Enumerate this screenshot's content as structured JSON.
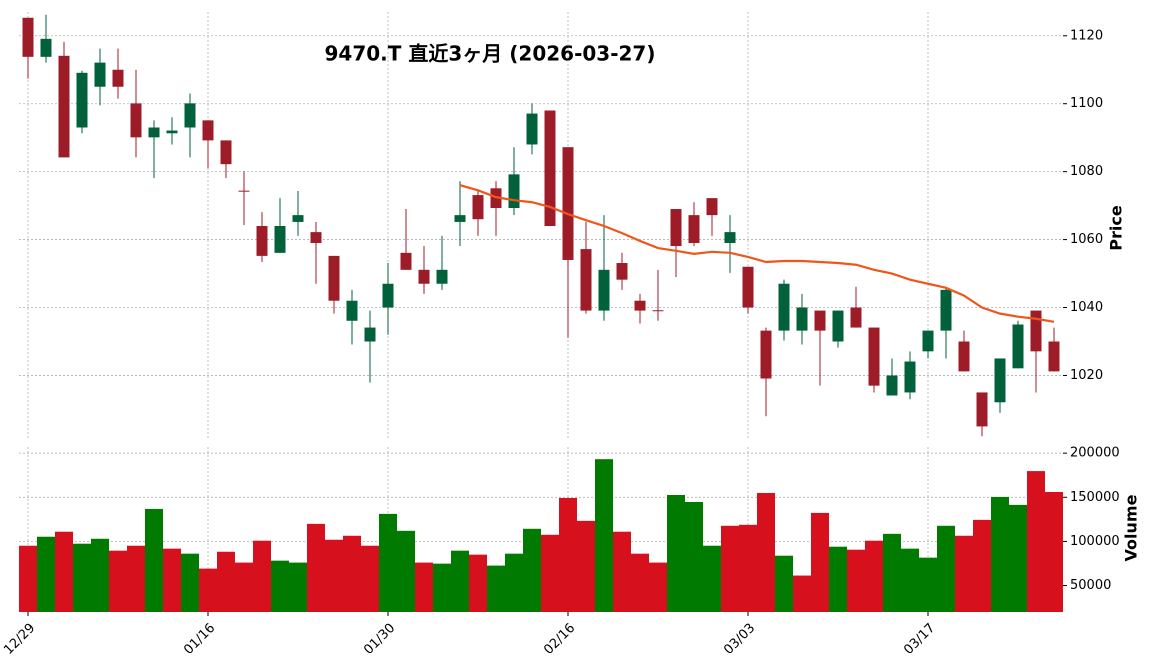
{
  "chart_data": [
    {
      "type": "candlestick",
      "title": "9470.T 直近3ヶ月 (2026-03-27)",
      "ylabel": "Price",
      "categories": [
        "12/29",
        null,
        null,
        null,
        null,
        null,
        null,
        null,
        null,
        null,
        "01/16",
        null,
        null,
        null,
        null,
        null,
        null,
        null,
        null,
        null,
        "01/30",
        null,
        null,
        null,
        null,
        null,
        null,
        null,
        null,
        null,
        "02/16",
        null,
        null,
        null,
        null,
        null,
        null,
        null,
        null,
        null,
        "03/03",
        null,
        null,
        null,
        null,
        null,
        null,
        null,
        null,
        null,
        "03/17",
        null,
        null,
        null,
        null,
        null,
        null,
        null
      ],
      "open": [
        1125.3,
        1113.8,
        1114.1,
        1093.0,
        1105.0,
        1110.0,
        1100.1,
        1090.1,
        1091.3,
        1093.0,
        1095.1,
        1089.2,
        1074.4,
        1064.0,
        1056.1,
        1065.2,
        1062.2,
        1055.2,
        1036.1,
        1030.0,
        1040.0,
        1056.1,
        1051.1,
        1047.0,
        1065.2,
        1073.1,
        1075.1,
        1069.3,
        1088.0,
        1098.0,
        1087.2,
        1057.2,
        1039.1,
        1053.1,
        1042.0,
        1039.2,
        1069.0,
        1067.2,
        1072.2,
        1059.0,
        1052.0,
        1033.2,
        1033.2,
        1033.2,
        1039.1,
        1030.0,
        1040.0,
        1034.1,
        1014.1,
        1015.0,
        1027.1,
        1033.2,
        1030.0,
        1015.0,
        1012.1,
        1022.1,
        1039.1,
        1030.0
      ],
      "high": [
        1125.3,
        1126.2,
        1118.2,
        1109.7,
        1116.2,
        1116.2,
        1110.0,
        1095.1,
        1096.0,
        1103.0,
        1095.1,
        1089.2,
        1080.1,
        1068.1,
        1072.2,
        1074.3,
        1065.2,
        1055.2,
        1045.2,
        1039.1,
        1053.1,
        1069.0,
        1058.1,
        1061.1,
        1077.2,
        1074.3,
        1077.2,
        1087.2,
        1100.1,
        1098.0,
        1087.2,
        1065.2,
        1067.2,
        1056.1,
        1044.0,
        1051.1,
        1069.0,
        1071.0,
        1072.2,
        1067.2,
        1052.0,
        1034.1,
        1048.2,
        1044.0,
        1039.1,
        1039.1,
        1046.1,
        1034.1,
        1025.0,
        1027.1,
        1033.2,
        1046.1,
        1033.2,
        1015.0,
        1025.0,
        1036.1,
        1039.1,
        1034.1
      ],
      "low": [
        1107.4,
        1112.1,
        1084.2,
        1091.3,
        1099.5,
        1101.5,
        1084.2,
        1078.1,
        1088.0,
        1084.2,
        1081.0,
        1078.1,
        1064.3,
        1053.4,
        1056.1,
        1061.1,
        1047.0,
        1038.2,
        1029.1,
        1017.9,
        1032.0,
        1051.1,
        1044.0,
        1045.2,
        1058.1,
        1061.1,
        1061.1,
        1067.2,
        1085.1,
        1064.0,
        1031.1,
        1038.2,
        1036.1,
        1045.2,
        1035.3,
        1036.1,
        1049.0,
        1058.1,
        1061.1,
        1050.2,
        1038.2,
        1008.0,
        1030.3,
        1029.1,
        1017.0,
        1028.2,
        1034.1,
        1015.0,
        1014.1,
        1013.0,
        1025.0,
        1025.0,
        1021.2,
        1002.1,
        1009.0,
        1022.1,
        1015.0,
        1021.2
      ],
      "close": [
        1113.8,
        1119.1,
        1084.2,
        1109.1,
        1112.1,
        1105.0,
        1090.1,
        1093.0,
        1092.1,
        1100.1,
        1089.2,
        1082.2,
        1074.2,
        1055.2,
        1064.0,
        1067.2,
        1059.0,
        1042.0,
        1042.0,
        1034.1,
        1047.0,
        1051.1,
        1047.0,
        1051.1,
        1067.2,
        1066.0,
        1069.3,
        1079.2,
        1097.1,
        1064.0,
        1054.0,
        1039.1,
        1051.1,
        1048.2,
        1039.1,
        1039.0,
        1058.1,
        1059.0,
        1067.2,
        1062.2,
        1040.0,
        1019.1,
        1047.0,
        1040.0,
        1033.2,
        1039.1,
        1034.1,
        1017.0,
        1020.0,
        1024.1,
        1033.2,
        1045.2,
        1021.2,
        1005.0,
        1025.0,
        1035.0,
        1027.1,
        1021.2
      ],
      "up_color": "#00613a",
      "down_color": "#9e1c28",
      "moving_average": {
        "color": "#f0561a",
        "values": [
          null,
          null,
          null,
          null,
          null,
          null,
          null,
          null,
          null,
          null,
          null,
          null,
          null,
          null,
          null,
          null,
          null,
          null,
          null,
          null,
          null,
          null,
          null,
          null,
          1076.0,
          1074.5,
          1072.5,
          1071.6,
          1071.0,
          1069.6,
          1067.5,
          1065.7,
          1064.0,
          1061.9,
          1059.6,
          1057.5,
          1056.7,
          1055.8,
          1056.4,
          1056.1,
          1054.9,
          1053.4,
          1053.7,
          1053.7,
          1053.4,
          1053.1,
          1052.6,
          1051.1,
          1050.0,
          1048.2,
          1047.0,
          1045.8,
          1043.5,
          1040.0,
          1038.2,
          1037.3,
          1036.7,
          1035.8
        ]
      },
      "ylim": [
        1001,
        1127
      ],
      "yticks": [
        1020,
        1040,
        1060,
        1080,
        1100,
        1120
      ],
      "grid": true
    },
    {
      "type": "bar",
      "ylabel": "Volume",
      "values": [
        95100,
        105300,
        111000,
        97400,
        103000,
        89500,
        95100,
        136800,
        91800,
        86100,
        69200,
        88300,
        76000,
        100800,
        78200,
        76000,
        119900,
        101900,
        106400,
        95100,
        131200,
        112000,
        76000,
        74800,
        89500,
        85000,
        72600,
        86100,
        114300,
        107500,
        149200,
        123300,
        193200,
        111000,
        86100,
        76000,
        152600,
        144700,
        95100,
        117700,
        118800,
        154900,
        83800,
        61300,
        132300,
        94000,
        90600,
        100800,
        108600,
        91800,
        81600,
        117700,
        106400,
        124400,
        150400,
        141400,
        179700,
        156000
      ],
      "colors": [
        "#d7101d",
        "#007a00",
        "#d7101d",
        "#007a00",
        "#007a00",
        "#d7101d",
        "#d7101d",
        "#007a00",
        "#d7101d",
        "#007a00",
        "#d7101d",
        "#d7101d",
        "#d7101d",
        "#d7101d",
        "#007a00",
        "#007a00",
        "#d7101d",
        "#d7101d",
        "#d7101d",
        "#d7101d",
        "#007a00",
        "#007a00",
        "#d7101d",
        "#007a00",
        "#007a00",
        "#d7101d",
        "#007a00",
        "#007a00",
        "#007a00",
        "#d7101d",
        "#d7101d",
        "#d7101d",
        "#007a00",
        "#d7101d",
        "#d7101d",
        "#d7101d",
        "#007a00",
        "#007a00",
        "#007a00",
        "#d7101d",
        "#d7101d",
        "#d7101d",
        "#007a00",
        "#d7101d",
        "#d7101d",
        "#007a00",
        "#d7101d",
        "#d7101d",
        "#007a00",
        "#007a00",
        "#007a00",
        "#007a00",
        "#d7101d",
        "#d7101d",
        "#007a00",
        "#007a00",
        "#d7101d",
        "#d7101d"
      ],
      "ylim": [
        20000,
        207000
      ],
      "yticks": [
        50000,
        100000,
        150000,
        200000
      ],
      "grid": true
    }
  ]
}
